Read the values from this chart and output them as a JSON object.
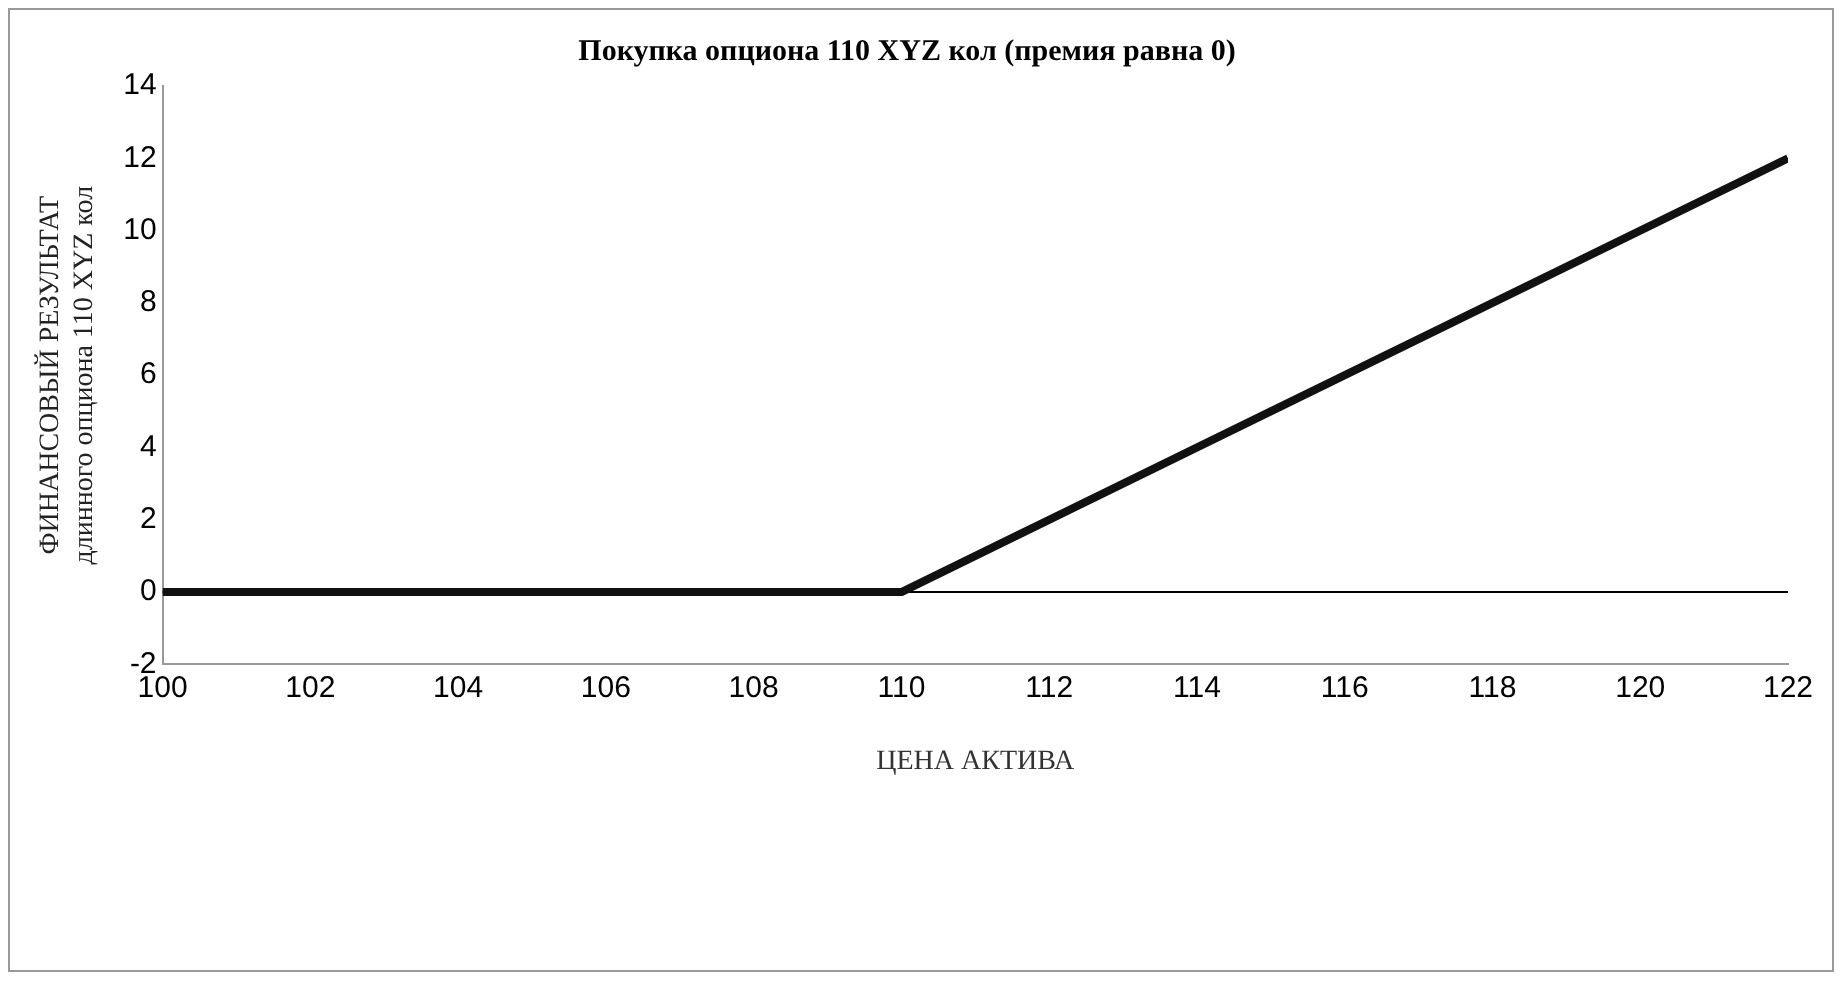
{
  "chart_data": {
    "type": "line",
    "title": "Покупка опциона 110 XYZ кол (премия равна 0)",
    "xlabel": "ЦЕНА АКТИВА",
    "ylabel": "ФИНАНСОВЫЙ РЕЗУЛЬТАТ\nдлинного опциона 110 XYZ кол",
    "x": [
      100,
      110,
      122
    ],
    "series": [
      {
        "color": "#111111",
        "values": [
          0,
          0,
          12
        ]
      }
    ],
    "xlim": [
      100,
      122
    ],
    "xticks": [
      100,
      102,
      104,
      106,
      108,
      110,
      112,
      114,
      116,
      118,
      120,
      122
    ],
    "ylim": [
      -2,
      14
    ],
    "yticks": [
      -2,
      0,
      2,
      4,
      6,
      8,
      10,
      12,
      14
    ],
    "ref_lines": [
      {
        "axis": "y",
        "value": 0,
        "color": "#000000"
      }
    ],
    "grid": false,
    "legend": false,
    "marker": "none",
    "line_style": "solid"
  }
}
